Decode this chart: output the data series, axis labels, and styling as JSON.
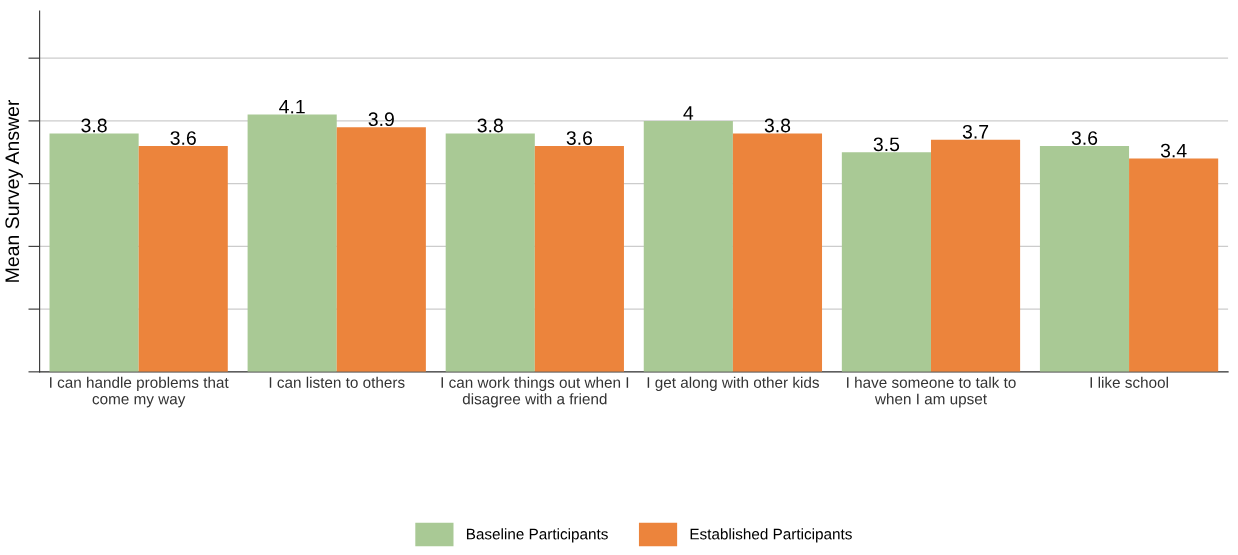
{
  "chart_data": {
    "type": "bar",
    "ylabel": "Mean Survey Answer",
    "categories": [
      "I can handle problems that come my way",
      "I can listen to others",
      "I can work things out when I disagree with a friend",
      "I get along with other kids",
      "I have someone to talk to when I am upset",
      "I like school"
    ],
    "series": [
      {
        "name": "Baseline Participants",
        "color": "#a9c995",
        "values": [
          3.8,
          4.1,
          3.8,
          4,
          3.5,
          3.6
        ]
      },
      {
        "name": "Established Participants",
        "color": "#ec843c",
        "values": [
          3.6,
          3.9,
          3.6,
          3.8,
          3.7,
          3.4
        ]
      }
    ],
    "ylim": [
      0,
      5.75
    ],
    "yticks": [
      {
        "value": 0,
        "label": null
      },
      {
        "value": 1,
        "label": null
      },
      {
        "value": 2,
        "label": null
      },
      {
        "value": 3,
        "label": null
      },
      {
        "value": 4,
        "label": null
      },
      {
        "value": 5,
        "label": null
      }
    ],
    "tick_labels": "x",
    "grid": "y",
    "legend": "bottom",
    "data_labels": true
  }
}
